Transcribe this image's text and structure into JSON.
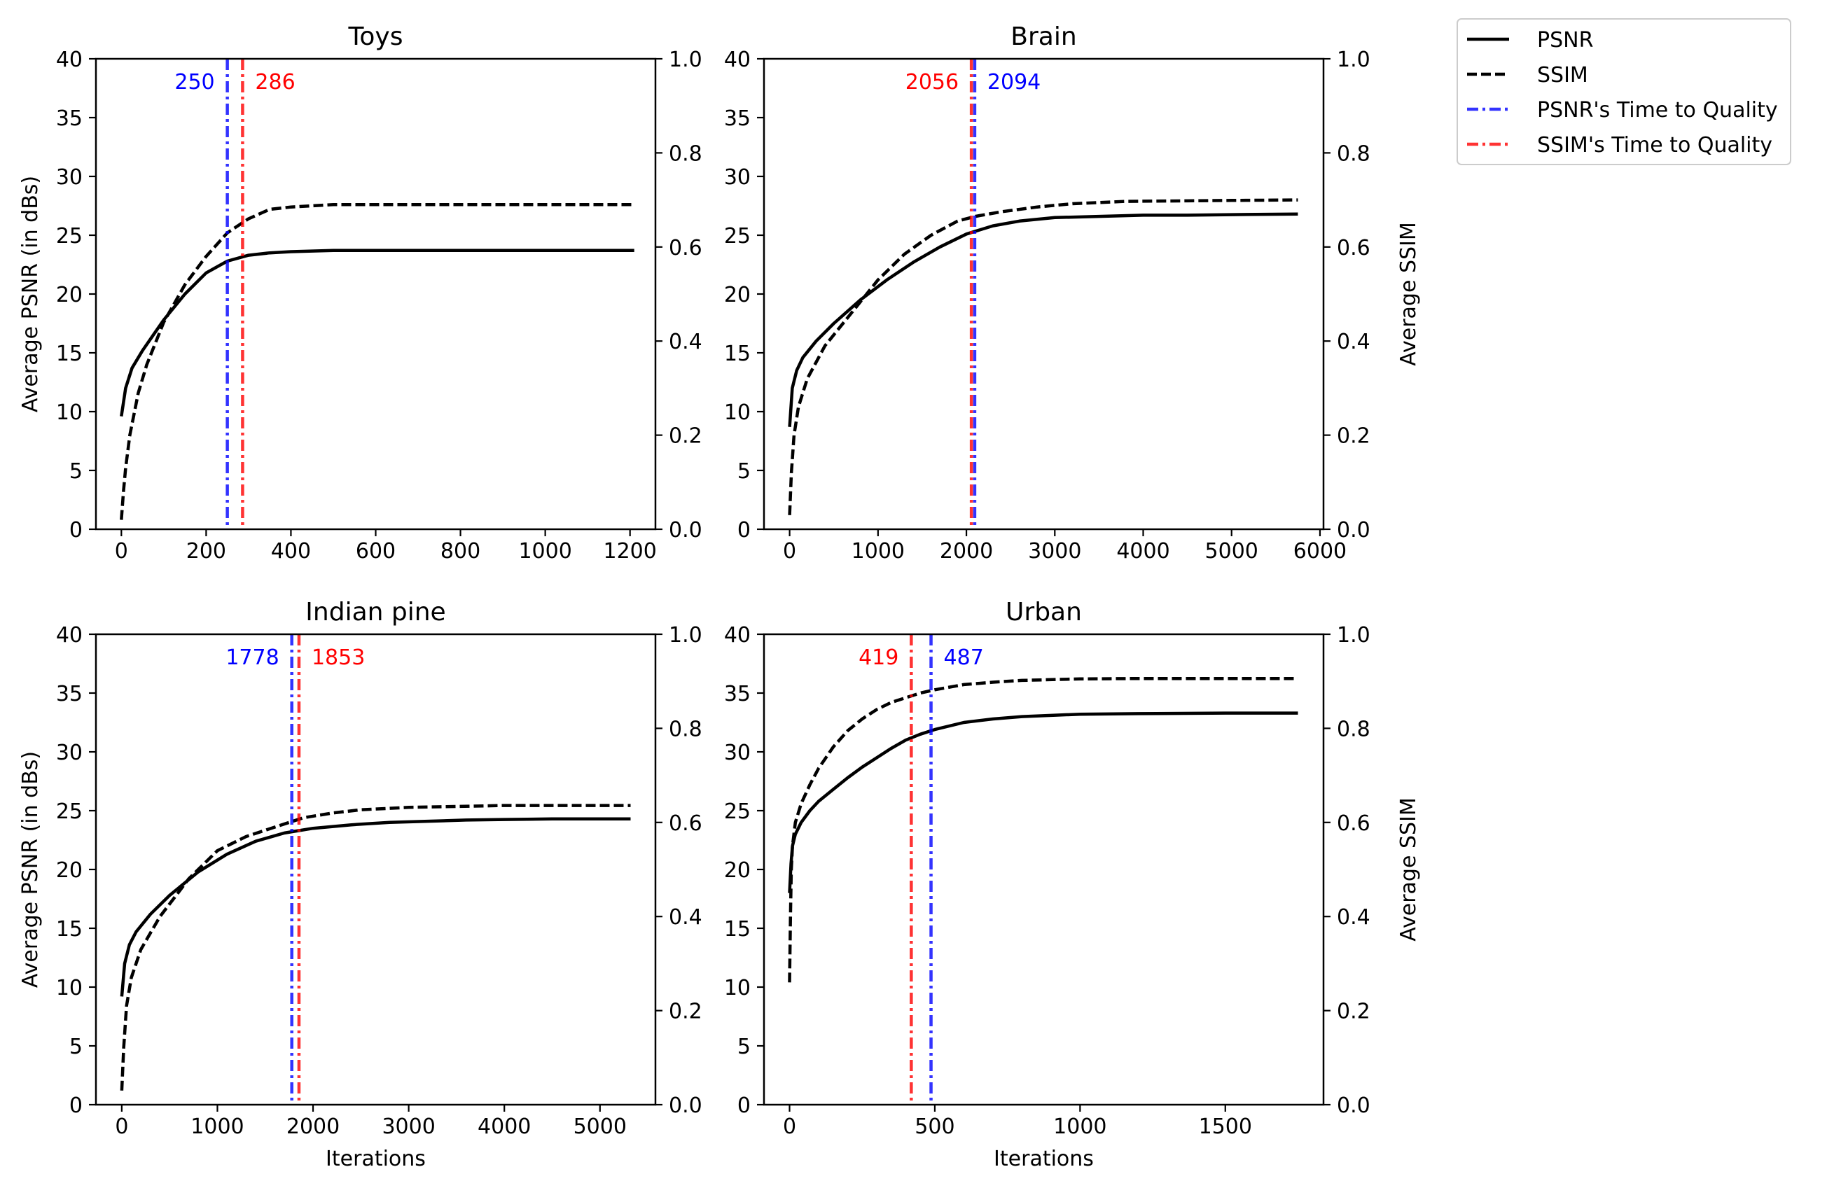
{
  "legend": {
    "placement": "outside-top-right",
    "entries": [
      {
        "label": "PSNR",
        "color": "#000000",
        "style": "solid"
      },
      {
        "label": "SSIM",
        "color": "#000000",
        "style": "dashed"
      },
      {
        "label": "PSNR's Time to Quality",
        "color": "#0000ff",
        "style": "dashdot"
      },
      {
        "label": "SSIM's Time to Quality",
        "color": "#ff0000",
        "style": "dashdot"
      }
    ]
  },
  "chart_data": [
    {
      "type": "line",
      "title": "Toys",
      "xlabel": "",
      "ylabel": "Average PSNR (in dBs)",
      "y2label": "",
      "xlim": [
        -60,
        1260
      ],
      "xticks": [
        0,
        200,
        400,
        600,
        800,
        1000,
        1200
      ],
      "xtick_labels": [
        "0",
        "200",
        "400",
        "600",
        "800",
        "1000",
        "1200"
      ],
      "ylim": [
        0,
        40
      ],
      "yticks": [
        0,
        5,
        10,
        15,
        20,
        25,
        30,
        35,
        40
      ],
      "ytick_labels": [
        "0",
        "5",
        "10",
        "15",
        "20",
        "25",
        "30",
        "35",
        "40"
      ],
      "y2lim": [
        0,
        1
      ],
      "y2ticks": [
        0,
        0.2,
        0.4,
        0.6,
        0.8,
        1.0
      ],
      "y2tick_labels": [
        "0.0",
        "0.2",
        "0.4",
        "0.6",
        "0.8",
        "1.0"
      ],
      "series": [
        {
          "name": "PSNR",
          "axis": "left",
          "style": "solid",
          "x": [
            0,
            10,
            25,
            50,
            75,
            100,
            150,
            200,
            250,
            300,
            350,
            400,
            500,
            700,
            900,
            1210
          ],
          "y": [
            9.6,
            12.0,
            13.7,
            15.2,
            16.5,
            17.8,
            20.0,
            21.8,
            22.8,
            23.3,
            23.5,
            23.6,
            23.7,
            23.7,
            23.7,
            23.7
          ]
        },
        {
          "name": "SSIM",
          "axis": "right",
          "style": "dashed",
          "x": [
            0,
            5,
            10,
            20,
            40,
            60,
            100,
            150,
            200,
            250,
            300,
            350,
            400,
            500,
            700,
            900,
            1210
          ],
          "y": [
            0.02,
            0.08,
            0.13,
            0.2,
            0.29,
            0.35,
            0.44,
            0.52,
            0.58,
            0.63,
            0.66,
            0.68,
            0.685,
            0.69,
            0.69,
            0.69,
            0.69
          ]
        }
      ],
      "markers": [
        {
          "name": "PSNR's Time to Quality",
          "x": 250,
          "label": "250",
          "color": "#0000ff"
        },
        {
          "name": "SSIM's Time to Quality",
          "x": 286,
          "label": "286",
          "color": "#ff0000"
        }
      ]
    },
    {
      "type": "line",
      "title": "Brain",
      "xlabel": "",
      "ylabel": "",
      "y2label": "Average SSIM",
      "xlim": [
        -290,
        6040
      ],
      "xticks": [
        0,
        1000,
        2000,
        3000,
        4000,
        5000,
        6000
      ],
      "xtick_labels": [
        "0",
        "1000",
        "2000",
        "3000",
        "4000",
        "5000",
        "6000"
      ],
      "ylim": [
        0,
        40
      ],
      "yticks": [
        0,
        5,
        10,
        15,
        20,
        25,
        30,
        35,
        40
      ],
      "ytick_labels": [
        "0",
        "5",
        "10",
        "15",
        "20",
        "25",
        "30",
        "35",
        "40"
      ],
      "y2lim": [
        0,
        1
      ],
      "y2ticks": [
        0,
        0.2,
        0.4,
        0.6,
        0.8,
        1.0
      ],
      "y2tick_labels": [
        "0.0",
        "0.2",
        "0.4",
        "0.6",
        "0.8",
        "1.0"
      ],
      "series": [
        {
          "name": "PSNR",
          "axis": "left",
          "style": "solid",
          "x": [
            0,
            30,
            80,
            150,
            300,
            500,
            800,
            1100,
            1400,
            1700,
            2000,
            2300,
            2600,
            3000,
            3500,
            4000,
            4500,
            5000,
            5750
          ],
          "y": [
            8.7,
            12.0,
            13.5,
            14.6,
            16.0,
            17.5,
            19.5,
            21.2,
            22.7,
            24.0,
            25.1,
            25.8,
            26.2,
            26.5,
            26.6,
            26.7,
            26.7,
            26.75,
            26.8
          ]
        },
        {
          "name": "SSIM",
          "axis": "right",
          "style": "dashed",
          "x": [
            0,
            20,
            50,
            100,
            200,
            400,
            700,
            1000,
            1300,
            1600,
            1900,
            2100,
            2400,
            2800,
            3200,
            3800,
            4500,
            5000,
            5750
          ],
          "y": [
            0.03,
            0.12,
            0.2,
            0.26,
            0.32,
            0.39,
            0.46,
            0.53,
            0.585,
            0.625,
            0.655,
            0.665,
            0.675,
            0.685,
            0.692,
            0.697,
            0.698,
            0.699,
            0.7
          ]
        }
      ],
      "markers": [
        {
          "name": "SSIM's Time to Quality",
          "x": 2056,
          "label": "2056",
          "color": "#ff0000"
        },
        {
          "name": "PSNR's Time to Quality",
          "x": 2094,
          "label": "2094",
          "color": "#0000ff"
        }
      ]
    },
    {
      "type": "line",
      "title": "Indian pine",
      "xlabel": "Iterations",
      "ylabel": "Average PSNR (in dBs)",
      "y2label": "",
      "xlim": [
        -270,
        5580
      ],
      "xticks": [
        0,
        1000,
        2000,
        3000,
        4000,
        5000
      ],
      "xtick_labels": [
        "0",
        "1000",
        "2000",
        "3000",
        "4000",
        "5000"
      ],
      "ylim": [
        0,
        40
      ],
      "yticks": [
        0,
        5,
        10,
        15,
        20,
        25,
        30,
        35,
        40
      ],
      "ytick_labels": [
        "0",
        "5",
        "10",
        "15",
        "20",
        "25",
        "30",
        "35",
        "40"
      ],
      "y2lim": [
        0,
        1
      ],
      "y2ticks": [
        0,
        0.2,
        0.4,
        0.6,
        0.8,
        1.0
      ],
      "y2tick_labels": [
        "0.0",
        "0.2",
        "0.4",
        "0.6",
        "0.8",
        "1.0"
      ],
      "series": [
        {
          "name": "PSNR",
          "axis": "left",
          "style": "solid",
          "x": [
            0,
            30,
            80,
            150,
            300,
            500,
            800,
            1100,
            1400,
            1700,
            2000,
            2400,
            2800,
            3200,
            3600,
            4000,
            4500,
            5320
          ],
          "y": [
            9.2,
            12.0,
            13.6,
            14.7,
            16.2,
            17.8,
            19.8,
            21.3,
            22.4,
            23.1,
            23.5,
            23.8,
            24.0,
            24.1,
            24.2,
            24.25,
            24.3,
            24.3
          ]
        },
        {
          "name": "SSIM",
          "axis": "right",
          "style": "dashed",
          "x": [
            0,
            20,
            50,
            100,
            200,
            400,
            700,
            1000,
            1300,
            1600,
            1900,
            2200,
            2500,
            3000,
            3500,
            4000,
            4500,
            5320
          ],
          "y": [
            0.03,
            0.12,
            0.21,
            0.27,
            0.33,
            0.4,
            0.48,
            0.54,
            0.57,
            0.59,
            0.61,
            0.62,
            0.627,
            0.632,
            0.634,
            0.636,
            0.636,
            0.636
          ]
        }
      ],
      "markers": [
        {
          "name": "PSNR's Time to Quality",
          "x": 1778,
          "label": "1778",
          "color": "#0000ff"
        },
        {
          "name": "SSIM's Time to Quality",
          "x": 1853,
          "label": "1853",
          "color": "#ff0000"
        }
      ]
    },
    {
      "type": "line",
      "title": "Urban",
      "xlabel": "Iterations",
      "ylabel": "",
      "y2label": "Average SSIM",
      "xlim": [
        -88,
        1838
      ],
      "xticks": [
        0,
        500,
        1000,
        1500
      ],
      "xtick_labels": [
        "0",
        "500",
        "1000",
        "1500"
      ],
      "ylim": [
        0,
        40
      ],
      "yticks": [
        0,
        5,
        10,
        15,
        20,
        25,
        30,
        35,
        40
      ],
      "ytick_labels": [
        "0",
        "5",
        "10",
        "15",
        "20",
        "25",
        "30",
        "35",
        "40"
      ],
      "y2lim": [
        0,
        1
      ],
      "y2ticks": [
        0,
        0.2,
        0.4,
        0.6,
        0.8,
        1.0
      ],
      "y2tick_labels": [
        "0.0",
        "0.2",
        "0.4",
        "0.6",
        "0.8",
        "1.0"
      ],
      "series": [
        {
          "name": "PSNR",
          "axis": "left",
          "style": "solid",
          "x": [
            0,
            5,
            10,
            20,
            40,
            70,
            100,
            150,
            200,
            250,
            300,
            350,
            400,
            450,
            500,
            600,
            700,
            800,
            1000,
            1200,
            1500,
            1750
          ],
          "y": [
            18.0,
            20.5,
            22.0,
            23.0,
            24.0,
            25.0,
            25.8,
            26.8,
            27.8,
            28.7,
            29.5,
            30.3,
            31.0,
            31.5,
            31.9,
            32.5,
            32.8,
            33.0,
            33.2,
            33.25,
            33.3,
            33.3
          ]
        },
        {
          "name": "SSIM",
          "axis": "right",
          "style": "dashed",
          "x": [
            0,
            3,
            6,
            10,
            20,
            40,
            70,
            100,
            150,
            200,
            250,
            300,
            350,
            400,
            450,
            500,
            600,
            700,
            800,
            1000,
            1200,
            1500,
            1750
          ],
          "y": [
            0.26,
            0.4,
            0.5,
            0.55,
            0.6,
            0.64,
            0.68,
            0.715,
            0.76,
            0.795,
            0.82,
            0.84,
            0.855,
            0.865,
            0.875,
            0.882,
            0.893,
            0.898,
            0.902,
            0.905,
            0.906,
            0.906,
            0.906
          ]
        }
      ],
      "markers": [
        {
          "name": "SSIM's Time to Quality",
          "x": 419,
          "label": "419",
          "color": "#ff0000"
        },
        {
          "name": "PSNR's Time to Quality",
          "x": 487,
          "label": "487",
          "color": "#0000ff"
        }
      ]
    }
  ]
}
